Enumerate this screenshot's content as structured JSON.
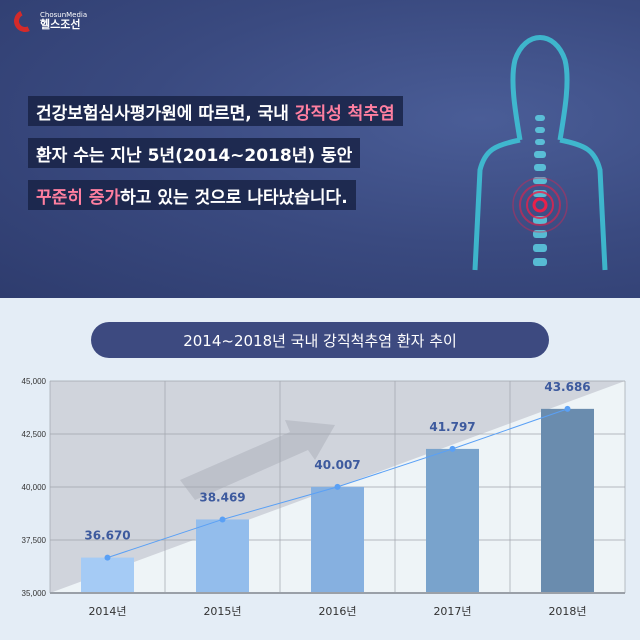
{
  "logo": {
    "brand_small": "ChosunMedia",
    "brand": "헬스조선"
  },
  "headline": {
    "line1": {
      "a": "건강보험심사평가원에 따르면, 국내 ",
      "b": "강직성 척추염"
    },
    "line2": "환자 수는 지난 5년(2014~2018년) 동안",
    "line3": {
      "a": "꾸준히 증가",
      "b": "하고 있는 것으로 나타났습니다."
    }
  },
  "colors": {
    "accent": "#ff7fa0",
    "navy": "#3d4a80",
    "line": "#5aa0f5"
  },
  "chart_data": {
    "type": "bar",
    "title": "2014~2018년 국내 강직척추염 환자 추이",
    "categories": [
      "2014년",
      "2015년",
      "2016년",
      "2017년",
      "2018년"
    ],
    "values": [
      36670,
      38469,
      40007,
      41797,
      43686
    ],
    "data_labels": [
      "36.670",
      "38.469",
      "40.007",
      "41.797",
      "43.686"
    ],
    "ylim": [
      35000,
      45000
    ],
    "yticks": [
      "35,000",
      "37,500",
      "40,000",
      "42,500",
      "45,000"
    ],
    "grid": true,
    "overlay": "line"
  }
}
